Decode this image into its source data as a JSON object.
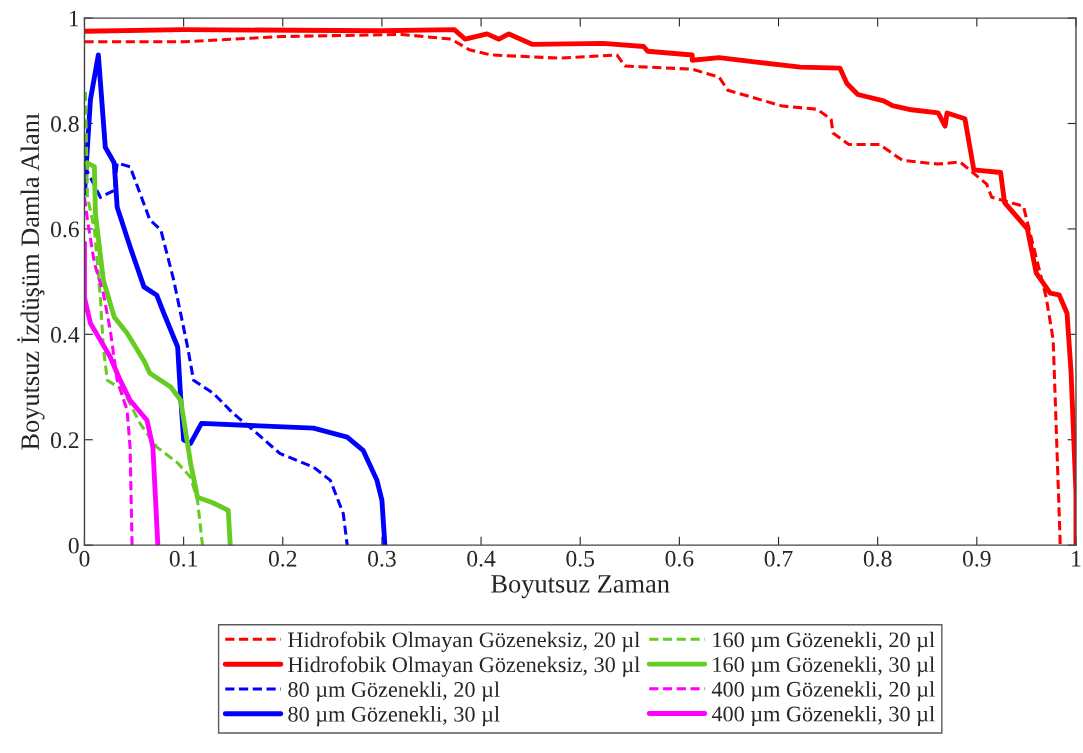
{
  "chart_data": {
    "type": "line",
    "xlabel": "Boyutsuz Zaman",
    "ylabel": "Boyutsuz İzdüşüm Damla Alanı",
    "xlim": [
      0,
      1
    ],
    "ylim": [
      0,
      1
    ],
    "xticks": [
      0,
      0.1,
      0.2,
      0.3,
      0.4,
      0.5,
      0.6,
      0.7,
      0.8,
      0.9,
      1
    ],
    "yticks": [
      0,
      0.2,
      0.4,
      0.6,
      0.8,
      1
    ],
    "grid": false,
    "legend": "bottom",
    "series": [
      {
        "name": "Hidrofobik Olmayan Gözeneksiz, 20 µl",
        "color": "#ff0000",
        "line_style": "dashed",
        "x": [
          0,
          0.1,
          0.2,
          0.32,
          0.37,
          0.388,
          0.41,
          0.479,
          0.537,
          0.545,
          0.613,
          0.64,
          0.649,
          0.704,
          0.739,
          0.753,
          0.755,
          0.771,
          0.802,
          0.825,
          0.861,
          0.883,
          0.91,
          0.915,
          0.947,
          0.97,
          0.977,
          0.984,
          0.984
        ],
        "values": [
          0.955,
          0.955,
          0.965,
          0.969,
          0.96,
          0.94,
          0.93,
          0.924,
          0.93,
          0.909,
          0.903,
          0.888,
          0.863,
          0.833,
          0.827,
          0.808,
          0.782,
          0.76,
          0.76,
          0.73,
          0.723,
          0.727,
          0.685,
          0.66,
          0.643,
          0.47,
          0.39,
          0.01,
          0
        ]
      },
      {
        "name": "Hidrofobik Olmayan Gözeneksiz, 30 µl",
        "color": "#ff0000",
        "line_style": "solid",
        "x": [
          0,
          0.1,
          0.298,
          0.373,
          0.384,
          0.406,
          0.418,
          0.428,
          0.452,
          0.523,
          0.564,
          0.568,
          0.613,
          0.613,
          0.64,
          0.68,
          0.722,
          0.762,
          0.769,
          0.78,
          0.806,
          0.815,
          0.834,
          0.861,
          0.868,
          0.87,
          0.888,
          0.897,
          0.924,
          0.928,
          0.951,
          0.96,
          0.974,
          0.983,
          0.991,
          0.995,
          1.0,
          1.0
        ],
        "values": [
          0.975,
          0.978,
          0.976,
          0.978,
          0.96,
          0.97,
          0.96,
          0.97,
          0.95,
          0.952,
          0.946,
          0.937,
          0.93,
          0.92,
          0.925,
          0.916,
          0.907,
          0.905,
          0.876,
          0.855,
          0.843,
          0.834,
          0.826,
          0.82,
          0.795,
          0.82,
          0.809,
          0.712,
          0.707,
          0.65,
          0.6,
          0.516,
          0.478,
          0.475,
          0.44,
          0.33,
          0.1,
          0
        ]
      },
      {
        "name": "80 µm Gözenekli, 20 µl",
        "color": "#0000ff",
        "line_style": "dashed",
        "x": [
          0,
          0.016,
          0.03,
          0.033,
          0.046,
          0.066,
          0.077,
          0.09,
          0.104,
          0.11,
          0.13,
          0.15,
          0.174,
          0.197,
          0.231,
          0.248,
          0.261,
          0.265
        ],
        "values": [
          0.72,
          0.66,
          0.673,
          0.725,
          0.718,
          0.617,
          0.598,
          0.503,
          0.376,
          0.313,
          0.288,
          0.25,
          0.212,
          0.174,
          0.148,
          0.123,
          0.06,
          0
        ]
      },
      {
        "name": "80 µm Gözenekli, 30 µl",
        "color": "#0000ff",
        "line_style": "solid",
        "x": [
          0,
          0.003,
          0.006,
          0.014,
          0.021,
          0.03,
          0.033,
          0.046,
          0.06,
          0.073,
          0.08,
          0.094,
          0.097,
          0.1,
          0.107,
          0.118,
          0.231,
          0.265,
          0.281,
          0.295,
          0.3,
          0.303
        ],
        "values": [
          0.667,
          0.755,
          0.845,
          0.93,
          0.755,
          0.725,
          0.641,
          0.566,
          0.49,
          0.474,
          0.44,
          0.376,
          0.281,
          0.2,
          0.193,
          0.231,
          0.222,
          0.205,
          0.18,
          0.123,
          0.085,
          0
        ]
      },
      {
        "name": "160 µm Gözenekli, 20 µl",
        "color": "#66cc22",
        "line_style": "dashed",
        "x": [
          0.001,
          0.003,
          0.01,
          0.016,
          0.019,
          0.023,
          0.039,
          0.056,
          0.073,
          0.094,
          0.107,
          0.114,
          0.119
        ],
        "values": [
          0.86,
          0.66,
          0.6,
          0.47,
          0.376,
          0.313,
          0.294,
          0.231,
          0.186,
          0.156,
          0.129,
          0.085,
          0
        ]
      },
      {
        "name": "160 µm Gözenekli, 30 µl",
        "color": "#66cc22",
        "line_style": "solid",
        "x": [
          0.003,
          0.01,
          0.011,
          0.019,
          0.03,
          0.043,
          0.06,
          0.066,
          0.087,
          0.097,
          0.107,
          0.114,
          0.13,
          0.145,
          0.147
        ],
        "values": [
          0.725,
          0.718,
          0.63,
          0.503,
          0.433,
          0.402,
          0.35,
          0.326,
          0.3,
          0.275,
          0.156,
          0.091,
          0.08,
          0.066,
          0
        ]
      },
      {
        "name": "400 µm Gözenekli, 20 µl",
        "color": "#ff00ff",
        "line_style": "dashed",
        "x": [
          0,
          0.003,
          0.01,
          0.019,
          0.026,
          0.033,
          0.043,
          0.046,
          0.048
        ],
        "values": [
          0.66,
          0.617,
          0.535,
          0.478,
          0.408,
          0.313,
          0.256,
          0.186,
          0
        ]
      },
      {
        "name": "400 µm Gözenekli, 30 µl",
        "color": "#ff00ff",
        "line_style": "solid",
        "x": [
          0,
          0,
          0.006,
          0.016,
          0.026,
          0.036,
          0.046,
          0.063,
          0.069,
          0.074
        ],
        "values": [
          0.573,
          0.47,
          0.421,
          0.389,
          0.357,
          0.313,
          0.275,
          0.237,
          0.186,
          0
        ]
      }
    ]
  }
}
